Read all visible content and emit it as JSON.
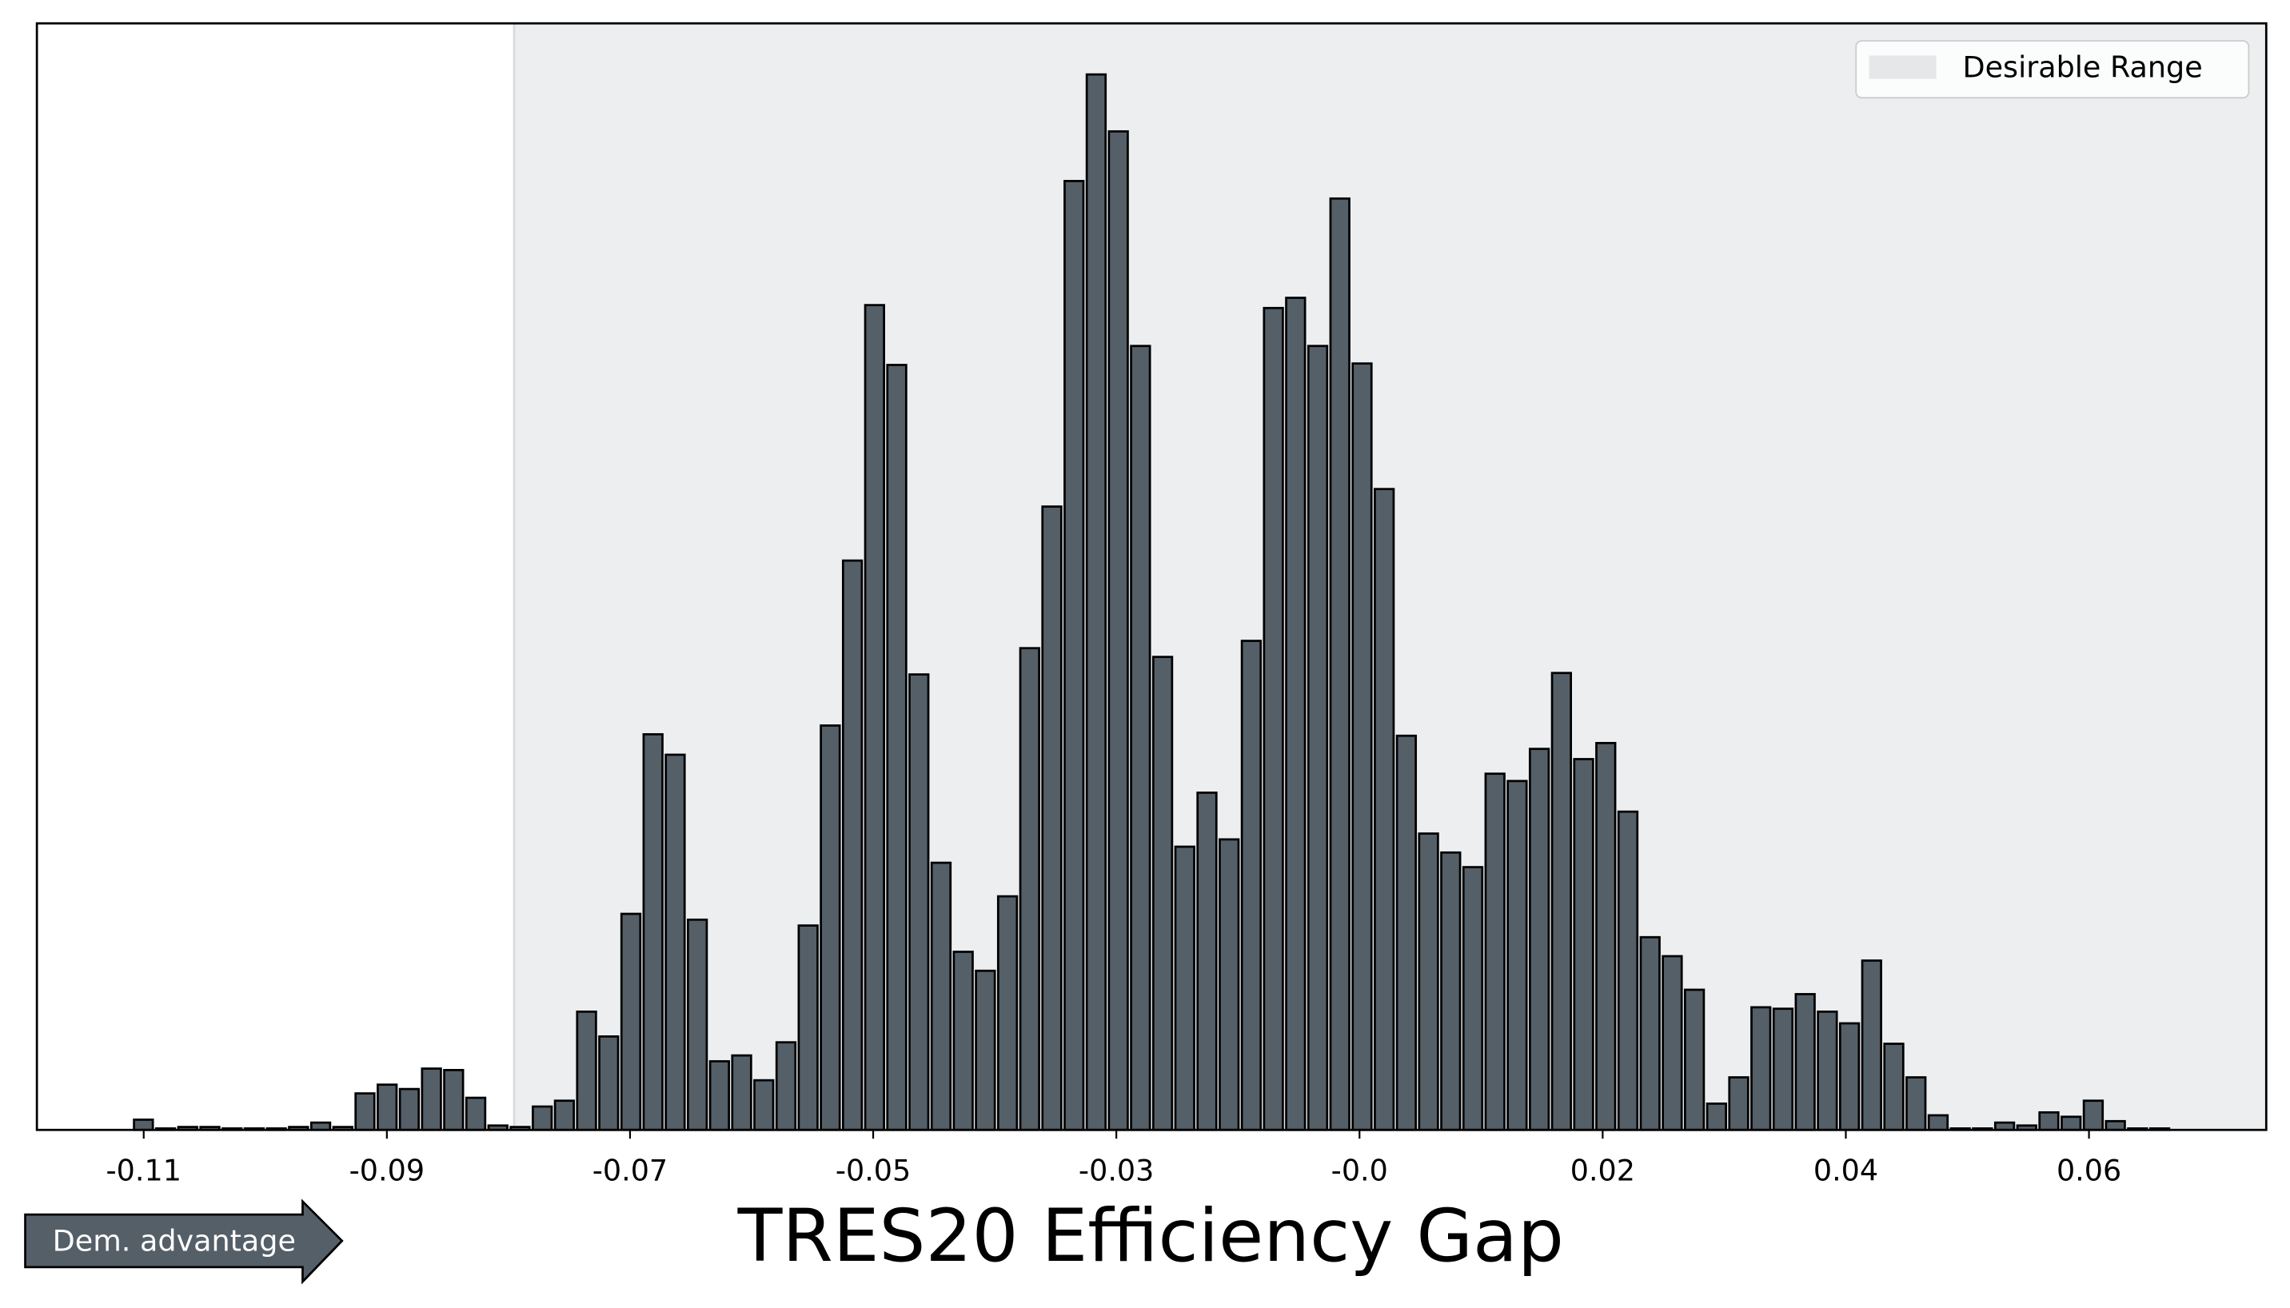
{
  "chart_data": {
    "type": "histogram",
    "xlabel": "TRES20 Efficiency Gap",
    "annotation": "Dem. advantage",
    "color": "#555f68",
    "bins": [
      -0.1122,
      -0.11025,
      -0.1083,
      -0.10635,
      -0.1044,
      -0.10245,
      -0.1005,
      -0.09855,
      -0.0966,
      -0.09465,
      -0.0927,
      -0.09075,
      -0.0888,
      -0.08685,
      -0.0849,
      -0.08295,
      -0.081,
      -0.07905,
      -0.0771,
      -0.07515,
      -0.0732,
      -0.07125,
      -0.0693,
      -0.06735,
      -0.0654,
      -0.06345,
      -0.0615,
      -0.05955,
      -0.0576,
      -0.05565,
      -0.0537,
      -0.05175,
      -0.0498,
      -0.04785,
      -0.0459,
      -0.04395,
      -0.042,
      -0.04005,
      -0.0381,
      -0.03615,
      -0.0342,
      -0.03225,
      -0.0303,
      -0.02835,
      -0.0264,
      -0.02445,
      -0.0225,
      -0.02055,
      -0.0186,
      -0.01665,
      -0.0147,
      -0.01275,
      -0.0108,
      -0.00885,
      -0.0069,
      -0.00495,
      -0.003,
      -0.00105,
      0.0009,
      0.00285,
      0.0048,
      0.00675,
      0.0087,
      0.01065,
      0.0126,
      0.01455,
      0.0165,
      0.01845,
      0.0204,
      0.02235,
      0.0243,
      0.02625,
      0.0282,
      0.03015,
      0.0321,
      0.03405,
      0.036,
      0.03795,
      0.0399,
      0.04185,
      0.0438,
      0.04575,
      0.0477,
      0.04965,
      0.0516,
      0.05355,
      0.0555,
      0.05745,
      0.0594,
      0.06135,
      0.0633,
      0.06525,
      0.0672
    ],
    "values": [
      7,
      1,
      2,
      2,
      1,
      1,
      1,
      2,
      5,
      2,
      25,
      31,
      28,
      42,
      41,
      22,
      3,
      2,
      16,
      20,
      81,
      64,
      148,
      271,
      257,
      144,
      47,
      51,
      34,
      60,
      140,
      277,
      390,
      565,
      524,
      312,
      183,
      122,
      109,
      160,
      330,
      427,
      650,
      723,
      684,
      537,
      324,
      194,
      231,
      199,
      335,
      563,
      570,
      537,
      638,
      525,
      439,
      270,
      203,
      190,
      180,
      244,
      239,
      261,
      313,
      254,
      265,
      218,
      132,
      119,
      96,
      18,
      36,
      84,
      83,
      93,
      81,
      73,
      116,
      59,
      36,
      10,
      1,
      1,
      5,
      3,
      12,
      9,
      20,
      6,
      1,
      1
    ],
    "xlim": [
      -0.1206,
      0.0756
    ],
    "ylim": [
      0,
      758
    ],
    "xticks": [
      {
        "value": -0.1112,
        "label": "-0.11"
      },
      {
        "value": -0.0898,
        "label": "-0.09"
      },
      {
        "value": -0.0684,
        "label": "-0.07"
      },
      {
        "value": -0.047,
        "label": "-0.05"
      },
      {
        "value": -0.0256,
        "label": "-0.03"
      },
      {
        "value": -0.0042,
        "label": "-0.0"
      },
      {
        "value": 0.0172,
        "label": "0.02"
      },
      {
        "value": 0.0386,
        "label": "0.04"
      },
      {
        "value": 0.06,
        "label": "0.06"
      }
    ],
    "shaded_region": {
      "name": "Desirable Range",
      "color": "#eceef0",
      "xlim": [
        -0.0786,
        0.0756
      ]
    },
    "legend": "upper right"
  }
}
